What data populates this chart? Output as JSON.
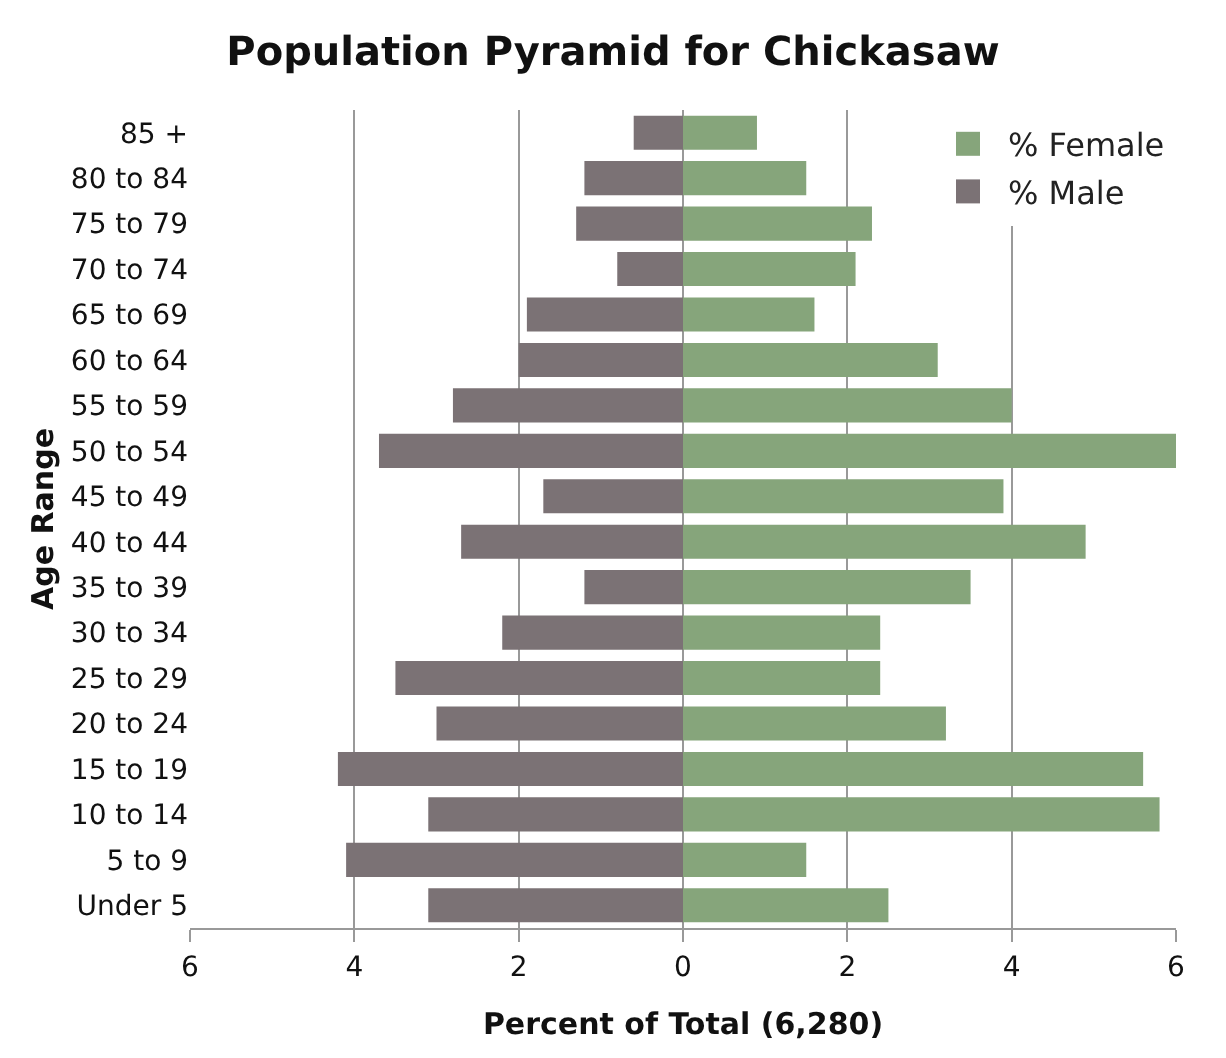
{
  "chart_data": {
    "type": "bar",
    "orientation": "horizontal",
    "title": "Population Pyramid for Chickasaw",
    "xlabel": "Percent of Total (6,280)",
    "ylabel": "Age Range",
    "categories": [
      "85 +",
      "80 to 84",
      "75 to 79",
      "70 to 74",
      "65 to 69",
      "60 to 64",
      "55 to 59",
      "50 to 54",
      "45 to 49",
      "40 to 44",
      "35 to 39",
      "30 to 34",
      "25 to 29",
      "20 to 24",
      "15 to 19",
      "10 to 14",
      "5 to 9",
      "Under 5"
    ],
    "series": [
      {
        "name": "% Female",
        "color": "#86a57b",
        "values": [
          0.9,
          1.5,
          2.3,
          2.1,
          1.6,
          3.1,
          4.0,
          6.0,
          3.9,
          4.9,
          3.5,
          2.4,
          2.4,
          3.2,
          5.6,
          5.8,
          1.5,
          2.5
        ]
      },
      {
        "name": "% Male",
        "color": "#7b7275",
        "values": [
          -0.6,
          -1.2,
          -1.3,
          -0.8,
          -1.9,
          -2.0,
          -2.8,
          -3.7,
          -1.7,
          -2.7,
          -1.2,
          -2.2,
          -3.5,
          -3.0,
          -4.2,
          -3.1,
          -4.1,
          -3.1
        ]
      }
    ],
    "xlim": [
      -6,
      6
    ],
    "xticks": [
      {
        "value": -6,
        "label": "6"
      },
      {
        "value": -4,
        "label": "4"
      },
      {
        "value": -2,
        "label": "2"
      },
      0,
      2,
      4,
      6
    ],
    "stacked": true,
    "grid": "x",
    "legend": "top right"
  }
}
